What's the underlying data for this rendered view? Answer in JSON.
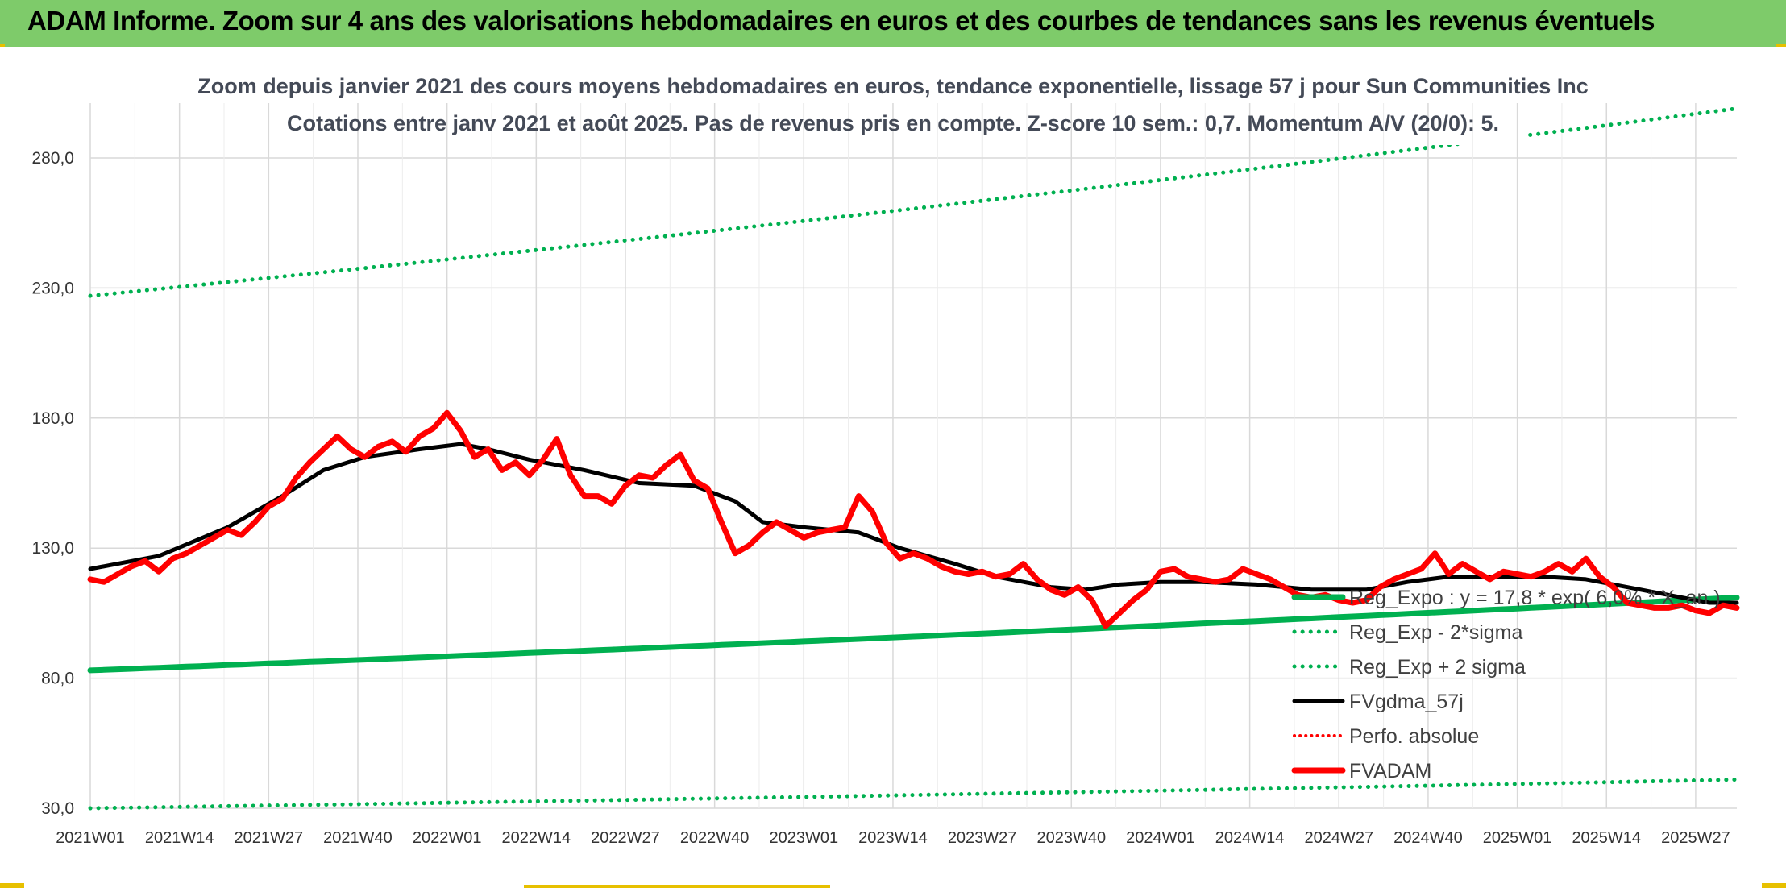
{
  "header": {
    "banner_title": "ADAM Informe. Zoom sur 4 ans des valorisations hebdomadaires en euros et des courbes de tendances sans les revenus éventuels"
  },
  "colors": {
    "banner_bg": "#7ecb6a",
    "trend_green": "#00b050",
    "fvadam_red": "#ff0000",
    "fvgdma_black": "#000000",
    "grid": "#d9d9d9"
  },
  "chart_data": {
    "type": "line",
    "title": "Zoom depuis janvier 2021 des cours moyens hebdomadaires en euros, tendance exponentielle, lissage 57 j pour Sun Communities Inc",
    "subtitle": "Cotations entre janv 2021 et août 2025. Pas de revenus pris en compte. Z-score 10 sem.: 0,7. Momentum A/V (20/0): 5.",
    "xlabel": "",
    "ylabel": "",
    "ylim": [
      30,
      300
    ],
    "yticks": [
      "30,0",
      "80,0",
      "130,0",
      "180,0",
      "230,0",
      "280,0"
    ],
    "xticks": [
      "2021W01",
      "2021W14",
      "2021W27",
      "2021W40",
      "2022W01",
      "2022W14",
      "2022W27",
      "2022W40",
      "2023W01",
      "2023W14",
      "2023W27",
      "2023W40",
      "2024W01",
      "2024W14",
      "2024W27",
      "2024W40",
      "2025W01",
      "2025W14",
      "2025W27"
    ],
    "grid": true,
    "legend_position": "right",
    "series": [
      {
        "name": "Reg_Expo : y = 17,8 * exp( 6,0% * X_an )",
        "style": "solid-green",
        "start": 83.0,
        "end": 111.0
      },
      {
        "name": "Reg_Exp - 2*sigma",
        "style": "dotted-green",
        "start": 30.0,
        "end": 41.0
      },
      {
        "name": "Reg_Exp + 2 sigma",
        "style": "dotted-green",
        "start": 227.0,
        "end": 299.0
      },
      {
        "name": "FVgdma_57j",
        "style": "solid-black",
        "anchors": [
          [
            0,
            122
          ],
          [
            10,
            127
          ],
          [
            20,
            138
          ],
          [
            28,
            150
          ],
          [
            34,
            160
          ],
          [
            40,
            165
          ],
          [
            48,
            168
          ],
          [
            54,
            170
          ],
          [
            58,
            168
          ],
          [
            64,
            164
          ],
          [
            72,
            160
          ],
          [
            80,
            155
          ],
          [
            88,
            154
          ],
          [
            94,
            148
          ],
          [
            98,
            140
          ],
          [
            104,
            138
          ],
          [
            112,
            136
          ],
          [
            118,
            130
          ],
          [
            126,
            124
          ],
          [
            132,
            119
          ],
          [
            140,
            115
          ],
          [
            145,
            114
          ],
          [
            150,
            116
          ],
          [
            156,
            117
          ],
          [
            162,
            117
          ],
          [
            170,
            116
          ],
          [
            178,
            114
          ],
          [
            186,
            114
          ],
          [
            192,
            117
          ],
          [
            198,
            119
          ],
          [
            205,
            119
          ],
          [
            212,
            119
          ],
          [
            218,
            118
          ],
          [
            224,
            115
          ],
          [
            230,
            112
          ],
          [
            236,
            109
          ],
          [
            240,
            109
          ]
        ]
      },
      {
        "name": "Perfo. absolue",
        "style": "dotted-red",
        "values": []
      },
      {
        "name": "FVADAM",
        "style": "solid-red",
        "anchors": [
          [
            0,
            118
          ],
          [
            2,
            117
          ],
          [
            4,
            120
          ],
          [
            6,
            123
          ],
          [
            8,
            125
          ],
          [
            10,
            121
          ],
          [
            12,
            126
          ],
          [
            14,
            128
          ],
          [
            16,
            131
          ],
          [
            18,
            134
          ],
          [
            20,
            137
          ],
          [
            22,
            135
          ],
          [
            24,
            140
          ],
          [
            26,
            146
          ],
          [
            28,
            149
          ],
          [
            30,
            157
          ],
          [
            32,
            163
          ],
          [
            34,
            168
          ],
          [
            36,
            173
          ],
          [
            38,
            168
          ],
          [
            40,
            165
          ],
          [
            42,
            169
          ],
          [
            44,
            171
          ],
          [
            46,
            167
          ],
          [
            48,
            173
          ],
          [
            50,
            176
          ],
          [
            52,
            182
          ],
          [
            54,
            175
          ],
          [
            56,
            165
          ],
          [
            58,
            168
          ],
          [
            60,
            160
          ],
          [
            62,
            163
          ],
          [
            64,
            158
          ],
          [
            66,
            164
          ],
          [
            68,
            172
          ],
          [
            70,
            158
          ],
          [
            72,
            150
          ],
          [
            74,
            150
          ],
          [
            76,
            147
          ],
          [
            78,
            154
          ],
          [
            80,
            158
          ],
          [
            82,
            157
          ],
          [
            84,
            162
          ],
          [
            86,
            166
          ],
          [
            88,
            156
          ],
          [
            90,
            153
          ],
          [
            92,
            140
          ],
          [
            94,
            128
          ],
          [
            96,
            131
          ],
          [
            98,
            136
          ],
          [
            100,
            140
          ],
          [
            102,
            137
          ],
          [
            104,
            134
          ],
          [
            106,
            136
          ],
          [
            108,
            137
          ],
          [
            110,
            138
          ],
          [
            112,
            150
          ],
          [
            114,
            144
          ],
          [
            116,
            132
          ],
          [
            118,
            126
          ],
          [
            120,
            128
          ],
          [
            122,
            126
          ],
          [
            124,
            123
          ],
          [
            126,
            121
          ],
          [
            128,
            120
          ],
          [
            130,
            121
          ],
          [
            132,
            119
          ],
          [
            134,
            120
          ],
          [
            136,
            124
          ],
          [
            138,
            118
          ],
          [
            140,
            114
          ],
          [
            142,
            112
          ],
          [
            144,
            115
          ],
          [
            146,
            110
          ],
          [
            148,
            100
          ],
          [
            150,
            105
          ],
          [
            152,
            110
          ],
          [
            154,
            114
          ],
          [
            156,
            121
          ],
          [
            158,
            122
          ],
          [
            160,
            119
          ],
          [
            162,
            118
          ],
          [
            164,
            117
          ],
          [
            166,
            118
          ],
          [
            168,
            122
          ],
          [
            170,
            120
          ],
          [
            172,
            118
          ],
          [
            174,
            115
          ],
          [
            176,
            112
          ],
          [
            178,
            111
          ],
          [
            180,
            112
          ],
          [
            182,
            110
          ],
          [
            184,
            109
          ],
          [
            186,
            110
          ],
          [
            188,
            115
          ],
          [
            190,
            118
          ],
          [
            192,
            120
          ],
          [
            194,
            122
          ],
          [
            196,
            128
          ],
          [
            198,
            120
          ],
          [
            200,
            124
          ],
          [
            202,
            121
          ],
          [
            204,
            118
          ],
          [
            206,
            121
          ],
          [
            208,
            120
          ],
          [
            210,
            119
          ],
          [
            212,
            121
          ],
          [
            214,
            124
          ],
          [
            216,
            121
          ],
          [
            218,
            126
          ],
          [
            220,
            119
          ],
          [
            222,
            115
          ],
          [
            224,
            109
          ],
          [
            226,
            108
          ],
          [
            228,
            107
          ],
          [
            230,
            107
          ],
          [
            232,
            108
          ],
          [
            234,
            106
          ],
          [
            236,
            105
          ],
          [
            238,
            108
          ],
          [
            240,
            107
          ]
        ]
      }
    ]
  }
}
